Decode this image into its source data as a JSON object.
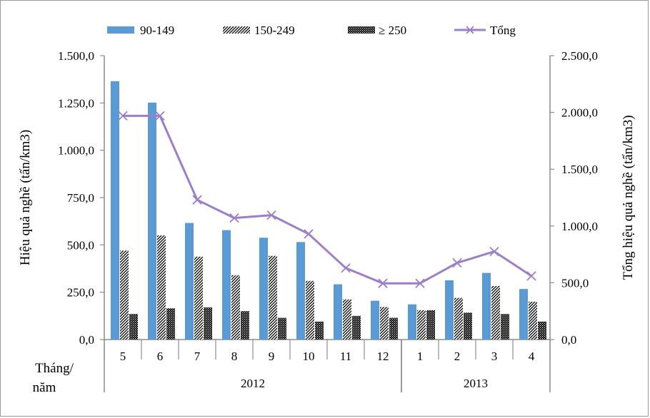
{
  "chart_data": {
    "type": "bar",
    "categories": [
      "5",
      "6",
      "7",
      "8",
      "9",
      "10",
      "11",
      "12",
      "1",
      "2",
      "3",
      "4"
    ],
    "category_groups": [
      {
        "label": "2012",
        "span": [
          0,
          7
        ]
      },
      {
        "label": "2013",
        "span": [
          8,
          11
        ]
      }
    ],
    "category_axis_title": [
      "Tháng/",
      "năm"
    ],
    "series": [
      {
        "name": "90-149",
        "type": "bar",
        "axis": "left",
        "color": "#5b9bd5",
        "pattern": "solid",
        "values": [
          1365,
          1252,
          616,
          578,
          538,
          515,
          292,
          205,
          186,
          313,
          352,
          267
        ]
      },
      {
        "name": "150-249",
        "type": "bar",
        "axis": "left",
        "color": "#000000",
        "pattern": "diagonal",
        "values": [
          470,
          550,
          438,
          340,
          442,
          310,
          212,
          172,
          155,
          220,
          283,
          200
        ]
      },
      {
        "name": "≥ 250",
        "type": "bar",
        "axis": "left",
        "color": "#000000",
        "pattern": "dense",
        "values": [
          135,
          165,
          170,
          150,
          115,
          95,
          125,
          115,
          155,
          142,
          135,
          95
        ]
      },
      {
        "name": "Tổng",
        "type": "line",
        "axis": "right",
        "color": "#9b7fc9",
        "marker": "x",
        "values": [
          1970,
          1970,
          1230,
          1070,
          1095,
          930,
          630,
          495,
          495,
          675,
          775,
          560
        ]
      }
    ],
    "y_left": {
      "label": "Hiệu quả nghề (tấn/km3)",
      "ylim": [
        0,
        1500
      ],
      "ticks": [
        "0,0",
        "250,0",
        "500,0",
        "750,0",
        "1.000,0",
        "1.250,0",
        "1.500,0"
      ]
    },
    "y_right": {
      "label": "Tổng hiệu quả nghề (tấn/km3)",
      "ylim": [
        0,
        2500
      ],
      "ticks": [
        "0,0",
        "500,0",
        "1.000,0",
        "1.500,0",
        "2.000,0",
        "2.500,0"
      ]
    },
    "legend_position": "top",
    "grid": false
  }
}
